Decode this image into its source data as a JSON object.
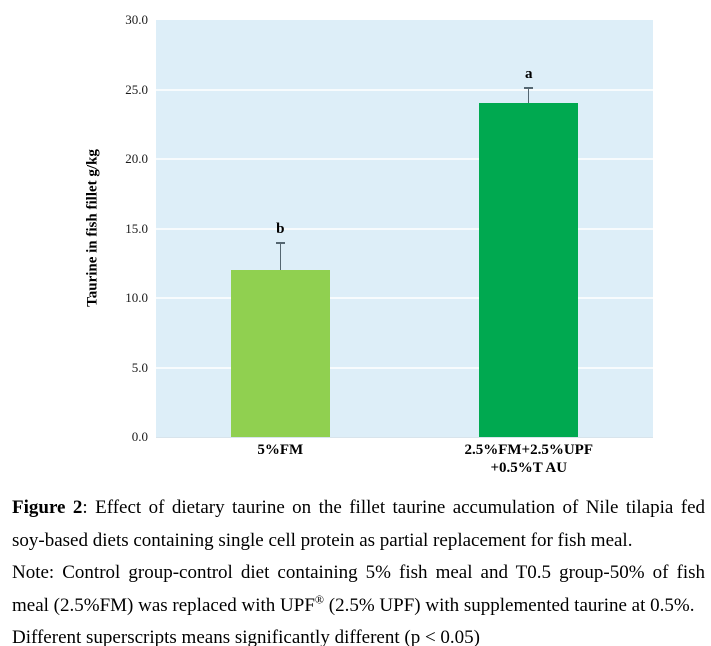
{
  "chart_data": {
    "type": "bar",
    "title": "",
    "xlabel": "",
    "ylabel": "Taurine in fish fillet g/kg",
    "ylim": [
      0,
      30
    ],
    "grid": true,
    "legend": "none",
    "plot_bg": "#ddeef8",
    "gridline_color": "rgba(255,255,255,0.75)",
    "error_bar_color": "#546671",
    "yticks": [
      {
        "value": 30,
        "label": "30.0"
      },
      {
        "value": 25,
        "label": "25.0"
      },
      {
        "value": 20,
        "label": "20.0"
      },
      {
        "value": 15,
        "label": "15.0"
      },
      {
        "value": 10,
        "label": "10.0"
      },
      {
        "value": 5,
        "label": "5.0"
      },
      {
        "value": 0,
        "label": "0.0"
      }
    ],
    "categories": [
      "5%FM",
      "2.5%FM+2.5%UPF +0.5%T AU"
    ],
    "category_label_lines": [
      [
        "5%FM"
      ],
      [
        "2.5%FM+2.5%UPF",
        "+0.5%T AU"
      ]
    ],
    "values": [
      12.0,
      24.0
    ],
    "errors_plus": [
      2.0,
      1.2
    ],
    "sig_letters": [
      "b",
      "a"
    ],
    "bar_colors": [
      "#90d050",
      "#00a950"
    ]
  },
  "caption": {
    "label": "Figure 2",
    "text": ": Effect of dietary taurine on the fillet taurine accumulation of Nile tilapia fed soy-based diets containing single cell protein as partial replacement for fish meal.",
    "note_pre": "Note: Control group-control diet containing 5% fish meal and T0.5 group-50% of fish meal (2.5%FM) was replaced with UPF",
    "note_sup": "®",
    "note_post": " (2.5% UPF) with supplemented taurine at 0.5%.",
    "note2": "Different superscripts means significantly different (p < 0.05)"
  }
}
